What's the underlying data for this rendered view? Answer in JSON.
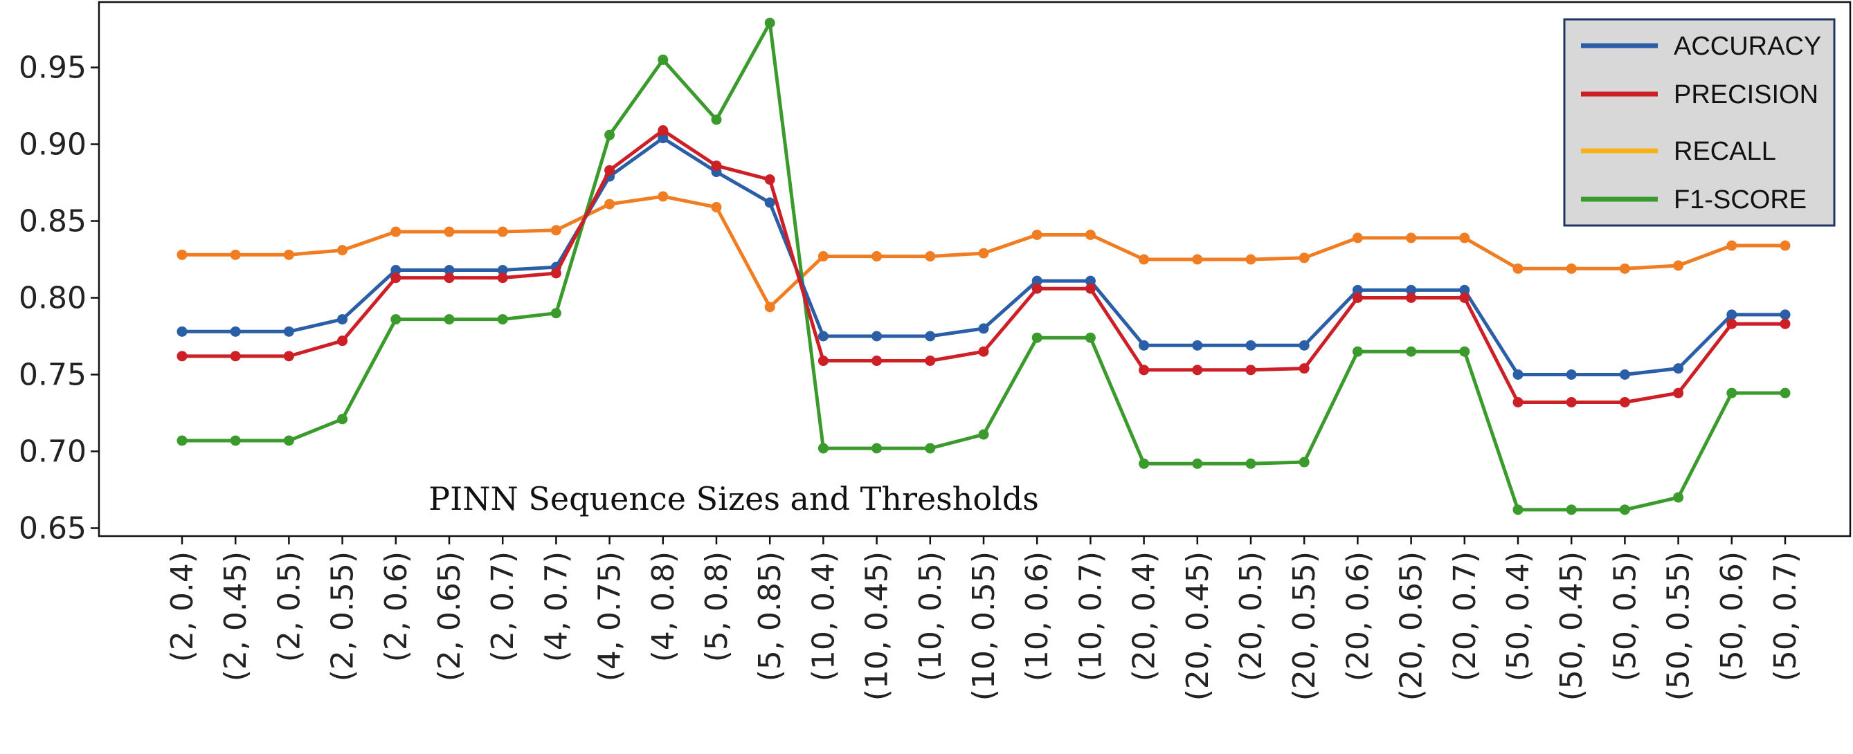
{
  "chart_data": {
    "type": "line",
    "title": "",
    "xlabel": "PINN Sequence Sizes and Thresholds",
    "ylabel": "",
    "ylim": [
      0.645,
      0.995
    ],
    "yticks": [
      0.65,
      0.7,
      0.75,
      0.8,
      0.85,
      0.9,
      0.95
    ],
    "ytick_labels": [
      "0.65",
      "0.70",
      "0.75",
      "0.80",
      "0.85",
      "0.90",
      "0.95"
    ],
    "grid": false,
    "legend_position": "top-right",
    "categories": [
      "(2, 0.4)",
      "(2, 0.45)",
      "(2, 0.5)",
      "(2, 0.55)",
      "(2, 0.6)",
      "(2, 0.65)",
      "(2, 0.7)",
      "(4, 0.7)",
      "(4, 0.75)",
      "(4, 0.8)",
      "(5, 0.8)",
      "(5, 0.85)",
      "(10, 0.4)",
      "(10, 0.45)",
      "(10, 0.5)",
      "(10, 0.55)",
      "(10, 0.6)",
      "(10, 0.7)",
      "(20, 0.4)",
      "(20, 0.45)",
      "(20, 0.5)",
      "(20, 0.55)",
      "(20, 0.6)",
      "(20, 0.65)",
      "(20, 0.7)",
      "(50, 0.4)",
      "(50, 0.45)",
      "(50, 0.5)",
      "(50, 0.55)",
      "(50, 0.6)",
      "(50, 0.7)"
    ],
    "series": [
      {
        "name": "ACCURACY",
        "color": "#2a5ea6",
        "values": [
          0.778,
          0.778,
          0.778,
          0.786,
          0.818,
          0.818,
          0.818,
          0.82,
          0.879,
          0.904,
          0.882,
          0.862,
          0.775,
          0.775,
          0.775,
          0.78,
          0.811,
          0.811,
          0.769,
          0.769,
          0.769,
          0.769,
          0.805,
          0.805,
          0.805,
          0.75,
          0.75,
          0.75,
          0.754,
          0.789,
          0.789
        ]
      },
      {
        "name": "PRECISION",
        "color": "#cc1f26",
        "values": [
          0.762,
          0.762,
          0.762,
          0.772,
          0.813,
          0.813,
          0.813,
          0.816,
          0.883,
          0.909,
          0.886,
          0.877,
          0.759,
          0.759,
          0.759,
          0.765,
          0.806,
          0.806,
          0.753,
          0.753,
          0.753,
          0.754,
          0.8,
          0.8,
          0.8,
          0.732,
          0.732,
          0.732,
          0.738,
          0.783,
          0.783
        ]
      },
      {
        "name": "RECALL",
        "color": "#f07d22",
        "legend_color": "#f7b21a",
        "values": [
          0.828,
          0.828,
          0.828,
          0.831,
          0.843,
          0.843,
          0.843,
          0.844,
          0.861,
          0.866,
          0.859,
          0.794,
          0.827,
          0.827,
          0.827,
          0.829,
          0.841,
          0.841,
          0.825,
          0.825,
          0.825,
          0.826,
          0.839,
          0.839,
          0.839,
          0.819,
          0.819,
          0.819,
          0.821,
          0.834,
          0.834
        ]
      },
      {
        "name": "F1-SCORE",
        "color": "#3a9a2c",
        "values": [
          0.707,
          0.707,
          0.707,
          0.721,
          0.786,
          0.786,
          0.786,
          0.79,
          0.906,
          0.955,
          0.916,
          0.979,
          0.702,
          0.702,
          0.702,
          0.711,
          0.774,
          0.774,
          0.692,
          0.692,
          0.692,
          0.693,
          0.765,
          0.765,
          0.765,
          0.662,
          0.662,
          0.662,
          0.67,
          0.738,
          0.738
        ]
      }
    ]
  }
}
